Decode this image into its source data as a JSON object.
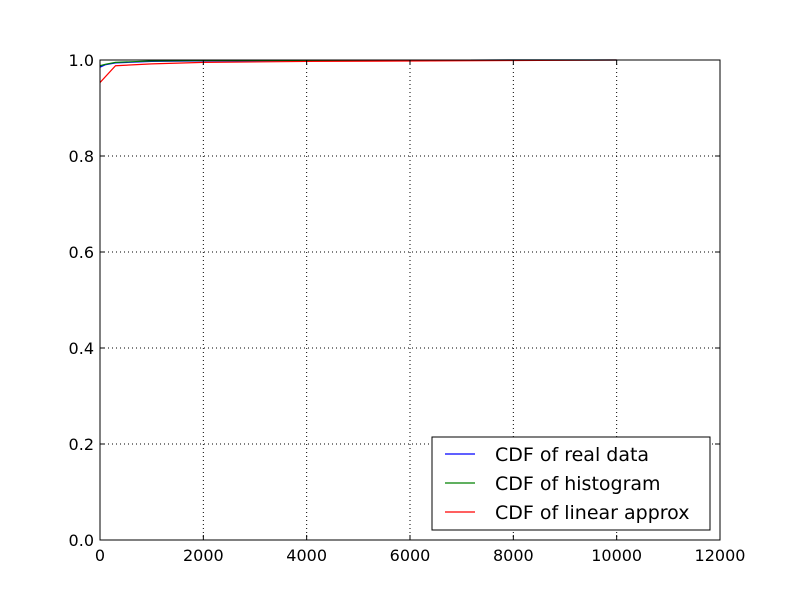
{
  "chart_data": {
    "type": "line",
    "title": "",
    "xlabel": "",
    "ylabel": "",
    "xlim": [
      0,
      12000
    ],
    "ylim": [
      0.0,
      1.0
    ],
    "x_ticks": [
      0,
      2000,
      4000,
      6000,
      8000,
      10000,
      12000
    ],
    "x_tick_labels": [
      "0",
      "2000",
      "4000",
      "6000",
      "8000",
      "10000",
      "12000"
    ],
    "y_ticks": [
      0.0,
      0.2,
      0.4,
      0.6,
      0.8,
      1.0
    ],
    "y_tick_labels": [
      "0.0",
      "0.2",
      "0.4",
      "0.6",
      "0.8",
      "1.0"
    ],
    "grid": true,
    "legend_position": "lower-right",
    "series": [
      {
        "name": "CDF of real data",
        "color": "#0000ff",
        "x": [
          0,
          100,
          300,
          1000,
          2000,
          4000,
          8000,
          10000
        ],
        "y": [
          0.985,
          0.99,
          0.994,
          0.997,
          0.998,
          0.999,
          1.0,
          1.0
        ]
      },
      {
        "name": "CDF of histogram",
        "color": "#008000",
        "x": [
          0,
          100,
          300,
          1000,
          2000,
          4000,
          8000,
          10000
        ],
        "y": [
          0.988,
          0.991,
          0.995,
          0.998,
          0.999,
          0.999,
          1.0,
          1.0
        ]
      },
      {
        "name": "CDF of linear approx",
        "color": "#ff0000",
        "x": [
          0,
          300,
          1000,
          2000,
          4000,
          8000,
          10000
        ],
        "y": [
          0.953,
          0.988,
          0.992,
          0.995,
          0.997,
          0.999,
          1.0
        ]
      }
    ]
  }
}
